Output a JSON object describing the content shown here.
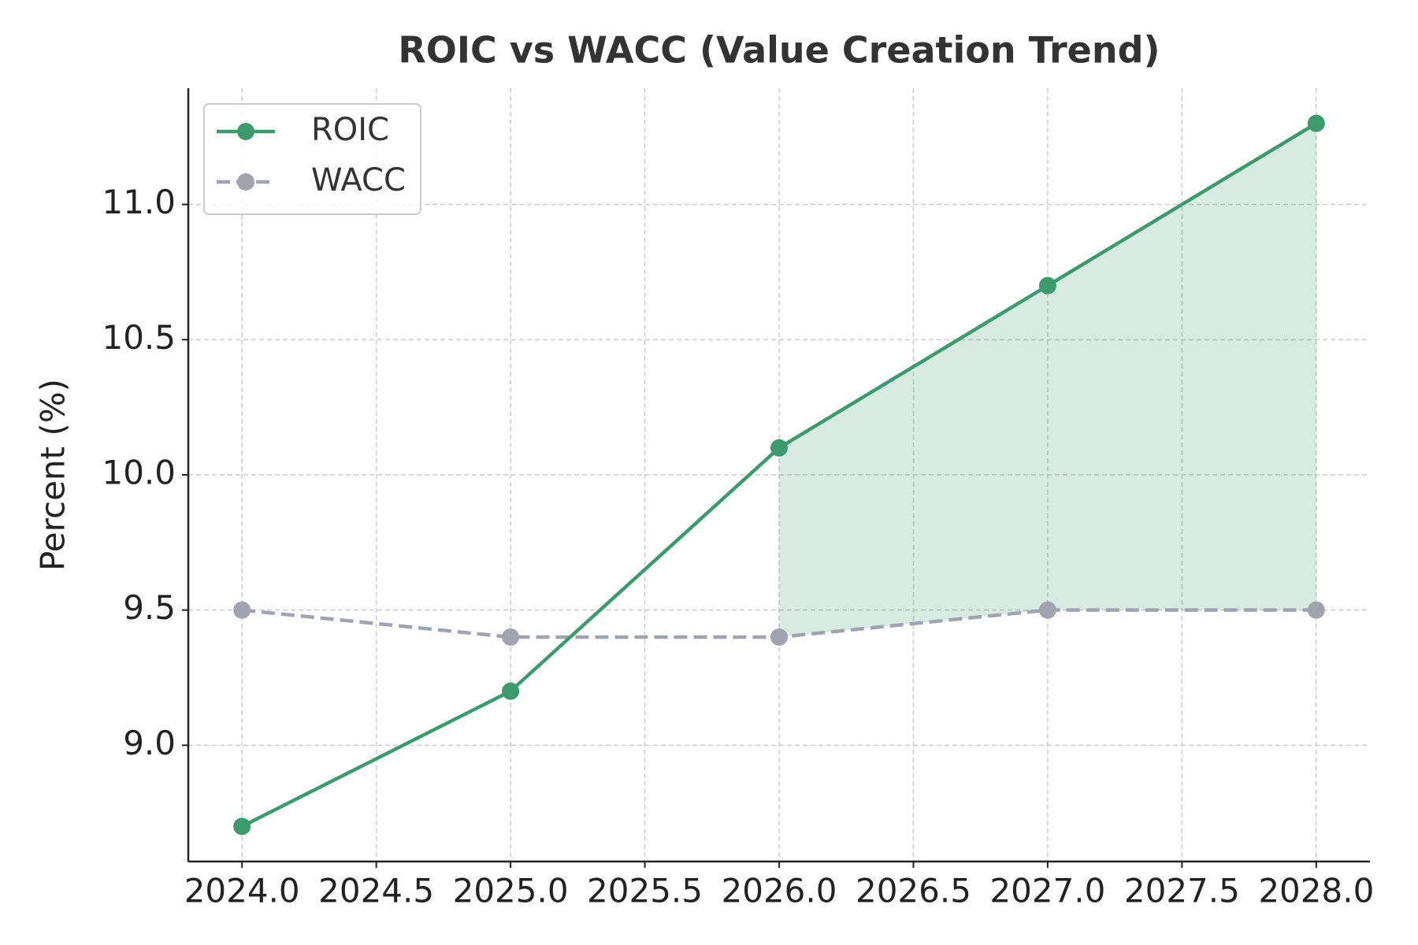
{
  "chart_data": {
    "type": "line",
    "title": "ROIC vs WACC (Value Creation Trend)",
    "ylabel": "Percent (%)",
    "x": [
      2024,
      2025,
      2026,
      2027,
      2028
    ],
    "series": [
      {
        "name": "ROIC",
        "color": "#3c9a6c",
        "linestyle": "solid",
        "values": [
          8.7,
          9.2,
          10.1,
          10.7,
          11.3
        ]
      },
      {
        "name": "WACC",
        "color": "#a0a4ae",
        "linestyle": "dashed",
        "values": [
          9.5,
          9.4,
          9.4,
          9.5,
          9.5
        ]
      }
    ],
    "fill": {
      "color": "#3c9a6c",
      "opacity": 0.2
    },
    "xlim": [
      2023.8,
      2028.2
    ],
    "xticks": [
      {
        "value": 2024,
        "label": "2024.0"
      },
      2024.5,
      {
        "value": 2025,
        "label": "2025.0"
      },
      2025.5,
      {
        "value": 2026,
        "label": "2026.0"
      },
      2026.5,
      {
        "value": 2027,
        "label": "2027.0"
      },
      2027.5,
      {
        "value": 2028,
        "label": "2028.0"
      }
    ],
    "ylim": [
      8.57,
      11.43
    ],
    "yticks": [
      {
        "value": 9,
        "label": "9.0"
      },
      9.5,
      {
        "value": 10,
        "label": "10.0"
      },
      10.5,
      {
        "value": 11,
        "label": "11.0"
      }
    ],
    "grid": true,
    "legend": "upper left"
  }
}
